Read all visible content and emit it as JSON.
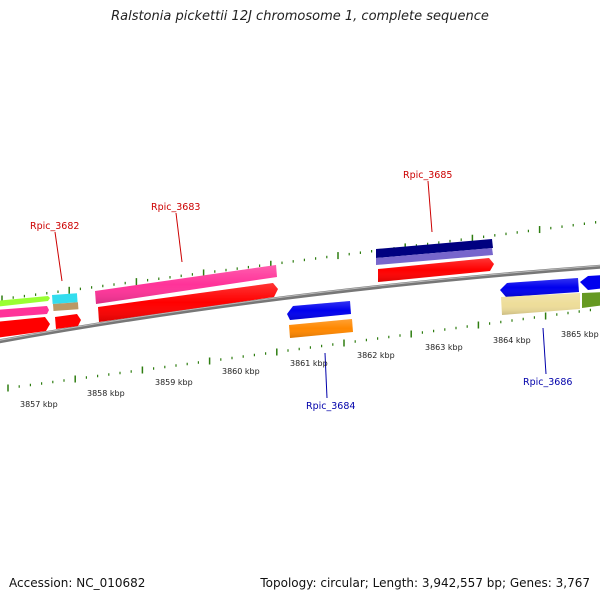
{
  "title": "Ralstonia pickettii 12J chromosome 1, complete sequence",
  "footer": {
    "accession": "Accession: NC_010682",
    "summary": "Topology: circular; Length: 3,942,557 bp; Genes: 3,767"
  },
  "colors": {
    "backbone": "#808080",
    "tick": "#2e7d10",
    "label_forward": "#cc0000",
    "label_reverse": "#0000aa"
  },
  "scale_labels": [
    "3857 kbp",
    "3858 kbp",
    "3859 kbp",
    "3860 kbp",
    "3861 kbp",
    "3862 kbp",
    "3863 kbp",
    "3864 kbp",
    "3865 kbp"
  ],
  "genes": [
    {
      "name": "Rpic_3682",
      "strand": "forward",
      "label_color": "#cc0000"
    },
    {
      "name": "Rpic_3683",
      "strand": "forward",
      "label_color": "#cc0000"
    },
    {
      "name": "Rpic_3684",
      "strand": "reverse",
      "label_color": "#0000aa"
    },
    {
      "name": "Rpic_3685",
      "strand": "forward",
      "label_color": "#cc0000"
    },
    {
      "name": "Rpic_3686",
      "strand": "reverse",
      "label_color": "#0000aa"
    }
  ],
  "feature_colors": [
    "#ff0000",
    "#ff3399",
    "#0000ee",
    "#ff8800",
    "#000080",
    "#7766cc",
    "#eedd99",
    "#669922",
    "#99ff33",
    "#33ddee",
    "#bb9966"
  ]
}
